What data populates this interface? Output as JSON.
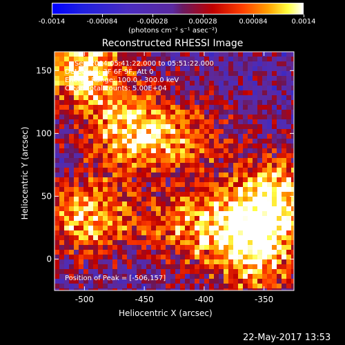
{
  "chart_data": {
    "type": "heatmap",
    "title": "Reconstructed RHESSI Image",
    "xlabel": "Heliocentric X (arcsec)",
    "ylabel": "Heliocentric Y (arcsec)",
    "xlim": [
      -525,
      -325
    ],
    "ylim": [
      -25,
      165
    ],
    "xticks": [
      -500,
      -450,
      -400,
      -350
    ],
    "yticks": [
      0,
      50,
      100,
      150
    ],
    "colorbar": {
      "ticks": [
        "-0.0014",
        "-0.00084",
        "-0.00028",
        "0.00028",
        "0.00084",
        "0.0014"
      ],
      "unit_label": "(photons cm⁻² s⁻¹ asec⁻²)",
      "range": [
        -0.0014,
        0.0014
      ]
    },
    "annotations": [
      "Sep-2004 05:41:22.000 to 05:51:22.000",
      "Detectors: 3F 6F 9F, Att 0",
      "Energy Range: 100.0 - 300.0 keV",
      "Clean    Total counts: 5.00E+04"
    ],
    "peak_label": "Position of Peak = [-506,157]",
    "peak": [
      -506,
      157
    ],
    "hot_regions": [
      {
        "x": -460,
        "y": 100,
        "strength": 0.85
      },
      {
        "x": -500,
        "y": 150,
        "strength": 0.95
      },
      {
        "x": -500,
        "y": 35,
        "strength": 0.8
      },
      {
        "x": -360,
        "y": 30,
        "strength": 0.85
      },
      {
        "x": -420,
        "y": 30,
        "strength": 0.6
      },
      {
        "x": -340,
        "y": 60,
        "strength": 0.6
      },
      {
        "x": -410,
        "y": 100,
        "strength": 0.45
      },
      {
        "x": -360,
        "y": 0,
        "strength": 0.6
      }
    ]
  },
  "timestamp": "22-May-2017 13:53"
}
